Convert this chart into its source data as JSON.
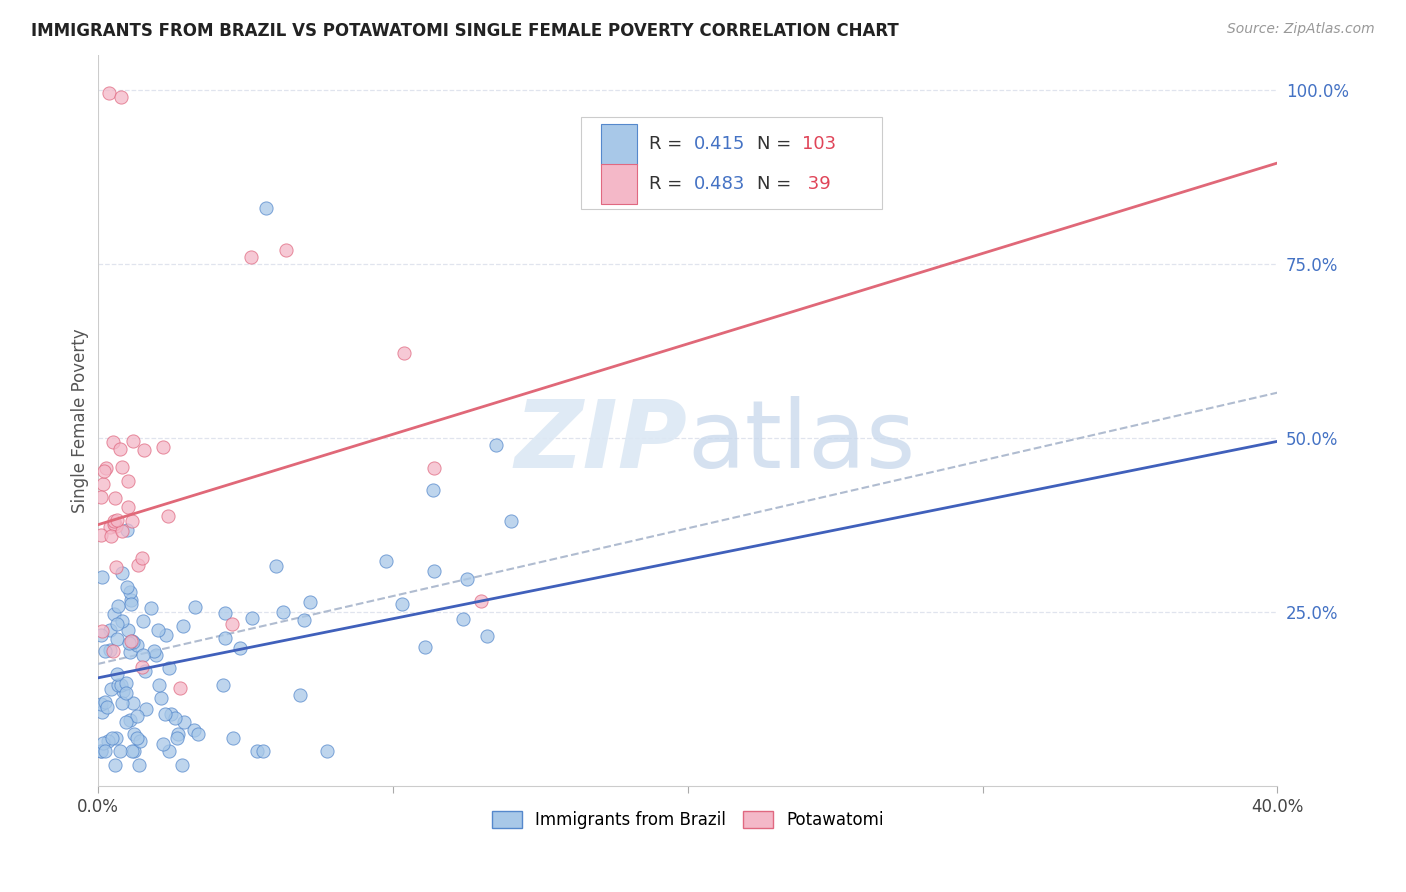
{
  "title": "IMMIGRANTS FROM BRAZIL VS POTAWATOMI SINGLE FEMALE POVERTY CORRELATION CHART",
  "source": "Source: ZipAtlas.com",
  "ylabel": "Single Female Poverty",
  "legend_label1": "Immigrants from Brazil",
  "legend_label2": "Potawatomi",
  "blue_scatter_color": "#a8c8e8",
  "blue_scatter_edge": "#5588cc",
  "pink_scatter_color": "#f4b8c8",
  "pink_scatter_edge": "#e06880",
  "blue_line_color": "#4060bb",
  "pink_line_color": "#e06878",
  "dashed_line_color": "#b0bcd0",
  "grid_color": "#e0e4ee",
  "xlim": [
    0.0,
    0.4
  ],
  "ylim": [
    0.0,
    1.05
  ],
  "xtick_positions": [
    0.0,
    0.1,
    0.2,
    0.3,
    0.4
  ],
  "ytick_positions": [
    0.25,
    0.5,
    0.75,
    1.0
  ],
  "ytick_labels": [
    "25.0%",
    "50.0%",
    "75.0%",
    "100.0%"
  ],
  "blue_line_y0": 0.155,
  "blue_line_y1": 0.495,
  "pink_line_y0": 0.375,
  "pink_line_y1": 0.895,
  "dash_line_y0": 0.175,
  "dash_line_y1": 0.565
}
